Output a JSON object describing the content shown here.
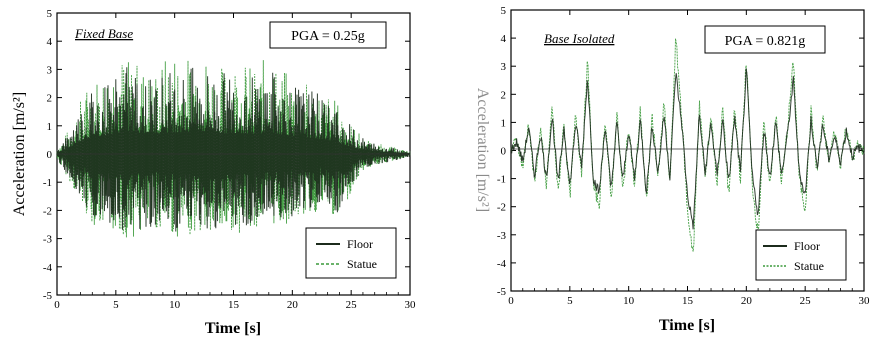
{
  "chart_data": [
    {
      "type": "line",
      "panel_label": "Fixed Base",
      "annotation": "PGA = 0.25g",
      "xlabel": "Time [s]",
      "ylabel": "Acceleration [m/s²]",
      "xlim": [
        0,
        30
      ],
      "ylim": [
        -5,
        5
      ],
      "xticks": [
        "0",
        "5",
        "10",
        "15",
        "20",
        "25",
        "30"
      ],
      "yticks": [
        "5",
        "4",
        "3",
        "2",
        "1",
        "0",
        "-1",
        "-2",
        "-3",
        "-4",
        "-5"
      ],
      "legend_position": "bottom-right",
      "series": [
        {
          "name": "Floor",
          "color": "#1c2b1c",
          "style": "solid",
          "x": [
            0,
            1,
            2,
            3,
            4,
            5,
            6,
            7,
            8,
            9,
            10,
            11,
            12,
            13,
            14,
            15,
            16,
            17,
            18,
            19,
            20,
            21,
            22,
            23,
            24,
            25,
            26,
            27,
            28,
            29,
            30
          ],
          "y_max": [
            0.2,
            0.8,
            1.8,
            2.4,
            2.6,
            3.0,
            3.2,
            3.0,
            2.8,
            3.0,
            3.1,
            3.0,
            3.2,
            3.0,
            2.9,
            3.0,
            2.9,
            2.8,
            3.1,
            2.8,
            2.6,
            2.4,
            2.2,
            2.0,
            1.6,
            1.0,
            0.6,
            0.4,
            0.3,
            0.2,
            0.1
          ],
          "y_min": [
            -0.2,
            -0.8,
            -1.6,
            -2.2,
            -2.4,
            -2.6,
            -2.8,
            -2.7,
            -2.6,
            -2.5,
            -2.8,
            -2.6,
            -2.5,
            -2.7,
            -2.6,
            -2.5,
            -2.6,
            -2.4,
            -2.3,
            -2.4,
            -2.2,
            -2.0,
            -2.0,
            -1.8,
            -2.2,
            -1.2,
            -0.6,
            -0.4,
            -0.3,
            -0.2,
            -0.1
          ]
        },
        {
          "name": "Statue",
          "color": "#3a9a3a",
          "style": "dashed",
          "x": [
            0,
            1,
            2,
            3,
            4,
            5,
            6,
            7,
            8,
            9,
            10,
            11,
            12,
            13,
            14,
            15,
            16,
            17,
            18,
            19,
            20,
            21,
            22,
            23,
            24,
            25,
            26,
            27,
            28,
            29,
            30
          ],
          "y_max": [
            0.2,
            0.9,
            2.0,
            2.8,
            3.0,
            3.9,
            3.4,
            3.3,
            3.0,
            3.4,
            3.8,
            3.4,
            4.2,
            3.4,
            3.2,
            3.6,
            3.3,
            3.0,
            3.7,
            3.0,
            2.9,
            2.6,
            2.4,
            2.2,
            1.8,
            1.1,
            0.6,
            0.4,
            0.3,
            0.2,
            0.1
          ],
          "y_min": [
            -0.2,
            -0.9,
            -1.8,
            -2.5,
            -2.7,
            -2.8,
            -3.0,
            -2.9,
            -2.8,
            -2.6,
            -3.0,
            -2.9,
            -2.8,
            -3.0,
            -2.9,
            -2.7,
            -2.9,
            -2.6,
            -2.5,
            -2.6,
            -2.4,
            -2.2,
            -2.1,
            -2.0,
            -2.5,
            -1.3,
            -0.6,
            -0.4,
            -0.3,
            -0.2,
            -0.1
          ]
        }
      ]
    },
    {
      "type": "line",
      "panel_label": "Base Isolated",
      "annotation": "PGA = 0.821g",
      "xlabel": "Time [s]",
      "ylabel": "Acceleration [m/s²]",
      "xlim": [
        0,
        30
      ],
      "ylim": [
        -5,
        5
      ],
      "xticks": [
        "0",
        "5",
        "10",
        "15",
        "20",
        "25",
        "30"
      ],
      "yticks": [
        "5",
        "4",
        "3",
        "2",
        "1",
        "0",
        "-1",
        "-2",
        "-3",
        "-4",
        "-5"
      ],
      "legend_position": "bottom-right",
      "series": [
        {
          "name": "Floor",
          "color": "#1c2b1c",
          "style": "solid",
          "x": [
            0,
            0.5,
            1,
            1.5,
            2,
            2.5,
            3,
            3.5,
            4,
            4.5,
            5,
            5.5,
            6,
            6.5,
            7,
            7.5,
            8,
            8.5,
            9,
            9.5,
            10,
            10.5,
            11,
            11.5,
            12,
            12.5,
            13,
            13.5,
            14,
            14.5,
            15,
            15.5,
            16,
            16.5,
            17,
            17.5,
            18,
            18.5,
            19,
            19.5,
            20,
            20.5,
            21,
            21.5,
            22,
            22.5,
            23,
            23.5,
            24,
            24.5,
            25,
            25.5,
            26,
            26.5,
            27,
            27.5,
            28,
            28.5,
            29,
            29.5,
            30
          ],
          "y": [
            0,
            0.3,
            -0.4,
            0.8,
            -0.9,
            0.6,
            -1.0,
            1.2,
            -1.2,
            0.8,
            -1.3,
            1.0,
            -0.6,
            2.6,
            -1.0,
            -1.5,
            0.9,
            -1.4,
            1.0,
            -1.1,
            0.7,
            -1.0,
            1.1,
            -1.5,
            0.9,
            -0.8,
            1.3,
            -0.9,
            2.8,
            1.0,
            -1.6,
            -2.7,
            1.3,
            -0.8,
            1.0,
            -0.9,
            1.1,
            -1.2,
            1.2,
            -0.8,
            2.9,
            -0.9,
            -2.3,
            0.8,
            -1.0,
            1.0,
            -0.9,
            0.6,
            2.5,
            -0.8,
            -1.6,
            1.1,
            -0.6,
            0.9,
            -0.3,
            0.5,
            -0.4,
            0.7,
            -0.2,
            0.1,
            0
          ]
        },
        {
          "name": "Statue",
          "color": "#3a9a3a",
          "style": "dashed",
          "x": [
            0,
            0.5,
            1,
            1.5,
            2,
            2.5,
            3,
            3.5,
            4,
            4.5,
            5,
            5.5,
            6,
            6.5,
            7,
            7.5,
            8,
            8.5,
            9,
            9.5,
            10,
            10.5,
            11,
            11.5,
            12,
            12.5,
            13,
            13.5,
            14,
            14.5,
            15,
            15.5,
            16,
            16.5,
            17,
            17.5,
            18,
            18.5,
            19,
            19.5,
            20,
            20.5,
            21,
            21.5,
            22,
            22.5,
            23,
            23.5,
            24,
            24.5,
            25,
            25.5,
            26,
            26.5,
            27,
            27.5,
            28,
            28.5,
            29,
            29.5,
            30
          ],
          "y": [
            0,
            0.4,
            -0.6,
            1.0,
            -1.2,
            0.8,
            -1.3,
            1.6,
            -1.6,
            1.0,
            -1.7,
            1.3,
            -0.8,
            3.2,
            -1.3,
            -1.9,
            1.2,
            -1.8,
            1.3,
            -1.5,
            0.9,
            -1.3,
            1.5,
            -1.9,
            1.2,
            -1.0,
            1.7,
            -1.2,
            4.0,
            1.3,
            -2.2,
            -3.7,
            1.7,
            -1.0,
            1.3,
            -1.2,
            1.5,
            -1.6,
            1.5,
            -1.0,
            3.3,
            -1.2,
            -3.0,
            1.0,
            -1.3,
            1.3,
            -1.2,
            0.8,
            3.2,
            -1.0,
            -2.1,
            1.4,
            -0.8,
            1.1,
            -0.4,
            0.7,
            -0.5,
            0.9,
            -0.3,
            0.2,
            0
          ]
        }
      ]
    }
  ]
}
